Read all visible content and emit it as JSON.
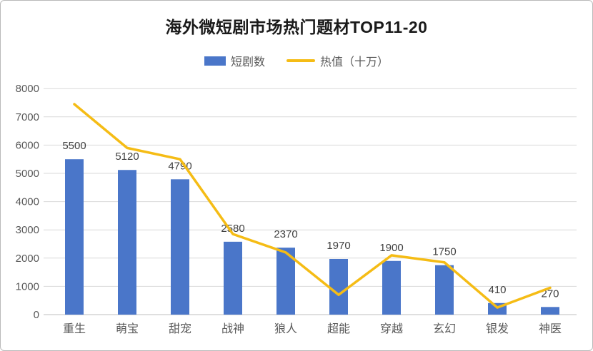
{
  "chart_data": {
    "type": "bar+line combo",
    "title": "海外微短剧市场热门题材TOP11-20",
    "categories": [
      "重生",
      "萌宝",
      "甜宠",
      "战神",
      "狼人",
      "超能",
      "穿越",
      "玄幻",
      "银发",
      "神医"
    ],
    "series": [
      {
        "name": "短剧数",
        "type": "bar",
        "color": "#4a76c9",
        "values": [
          5500,
          5120,
          4790,
          2580,
          2370,
          1970,
          1900,
          1750,
          410,
          270
        ],
        "data_labels_shown": true
      },
      {
        "name": "热值（十万）",
        "type": "line",
        "color": "#f5bc15",
        "values": [
          7450,
          5900,
          5500,
          2850,
          2200,
          700,
          2100,
          1850,
          250,
          950
        ],
        "values_estimated_from_pixels": true,
        "data_labels_shown": false
      }
    ],
    "y_axis": {
      "min": 0,
      "max": 8000,
      "step": 1000,
      "ticks": [
        0,
        1000,
        2000,
        3000,
        4000,
        5000,
        6000,
        7000,
        8000
      ]
    },
    "grid": true,
    "legend_position": "top",
    "style": {
      "grid_color": "#d9d9d9",
      "zero_line_color": "#bfbfbf",
      "axis_label_color": "#595959",
      "data_label_color": "#404040",
      "title_color": "#1a1a1a"
    }
  },
  "legend": {
    "bar_label": "短剧数",
    "line_label": "热值（十万）"
  }
}
